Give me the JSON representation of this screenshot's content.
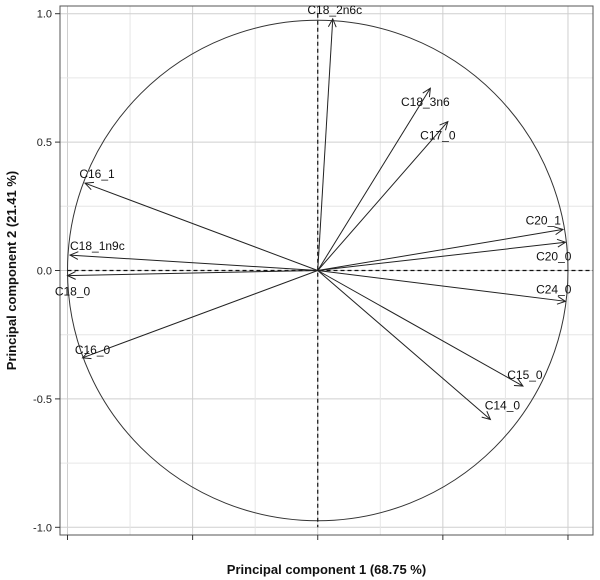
{
  "chart_data": {
    "type": "scatter",
    "subtype": "pca-correlation-circle",
    "title": "",
    "xlabel": "Principal component 1 (68.75 %)",
    "ylabel": "Principal component 2  (21.41 %)",
    "xlim": [
      -1.03,
      1.1
    ],
    "ylim": [
      -1.03,
      1.03
    ],
    "x_ticks": [
      -1.0,
      -0.5,
      0.0,
      0.5,
      1.0
    ],
    "y_ticks": [
      -1.0,
      -0.5,
      0.0,
      0.5,
      1.0
    ],
    "y_tick_labels": [
      "-1.0",
      "-0.5",
      "0.0",
      "0.5",
      "1.0"
    ],
    "grid": true,
    "unit_circle": true,
    "loadings": [
      {
        "label": "C18_2n6c",
        "x": 0.06,
        "y": 0.98
      },
      {
        "label": "C18_3n6",
        "x": 0.45,
        "y": 0.71
      },
      {
        "label": "C17_0",
        "x": 0.52,
        "y": 0.58
      },
      {
        "label": "C16_1",
        "x": -0.93,
        "y": 0.34
      },
      {
        "label": "C20_1",
        "x": 0.98,
        "y": 0.16
      },
      {
        "label": "C20_0",
        "x": 0.99,
        "y": 0.11
      },
      {
        "label": "C18_1n9c",
        "x": -0.99,
        "y": 0.06
      },
      {
        "label": "C18_0",
        "x": -1.0,
        "y": -0.02
      },
      {
        "label": "C24_0",
        "x": 0.99,
        "y": -0.12
      },
      {
        "label": "C16_0",
        "x": -0.94,
        "y": -0.34
      },
      {
        "label": "C15_0",
        "x": 0.82,
        "y": -0.45
      },
      {
        "label": "C14_0",
        "x": 0.69,
        "y": -0.58
      }
    ]
  }
}
